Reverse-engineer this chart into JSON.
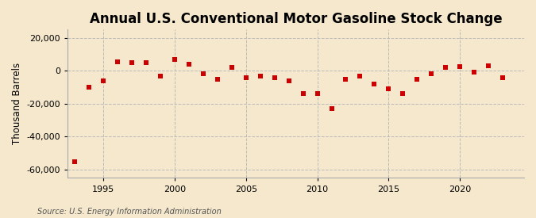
{
  "title": "Annual U.S. Conventional Motor Gasoline Stock Change",
  "ylabel": "Thousand Barrels",
  "source": "Source: U.S. Energy Information Administration",
  "background_color": "#f5e8cd",
  "years": [
    1993,
    1994,
    1995,
    1996,
    1997,
    1998,
    1999,
    2000,
    2001,
    2002,
    2003,
    2004,
    2005,
    2006,
    2007,
    2008,
    2009,
    2010,
    2011,
    2012,
    2013,
    2014,
    2015,
    2016,
    2017,
    2018,
    2019,
    2020,
    2021,
    2022,
    2023
  ],
  "values": [
    -55000,
    -10000,
    -6000,
    5500,
    5000,
    5000,
    -3000,
    7000,
    4000,
    -2000,
    -5000,
    2000,
    -4000,
    -3000,
    -4000,
    -6000,
    -14000,
    -14000,
    -23000,
    -5000,
    -3000,
    -8000,
    -11000,
    -14000,
    -5000,
    -2000,
    2000,
    2500,
    -1000,
    3000,
    -4000
  ],
  "dot_color": "#cc0000",
  "dot_size": 22,
  "xlim": [
    1992.5,
    2024.5
  ],
  "ylim": [
    -65000,
    25000
  ],
  "yticks": [
    -60000,
    -40000,
    -20000,
    0,
    20000
  ],
  "xticks": [
    1995,
    2000,
    2005,
    2010,
    2015,
    2020
  ],
  "grid_color": "#bbbbbb",
  "grid_style": "--",
  "title_fontsize": 12,
  "label_fontsize": 8.5,
  "tick_fontsize": 8,
  "source_fontsize": 7
}
